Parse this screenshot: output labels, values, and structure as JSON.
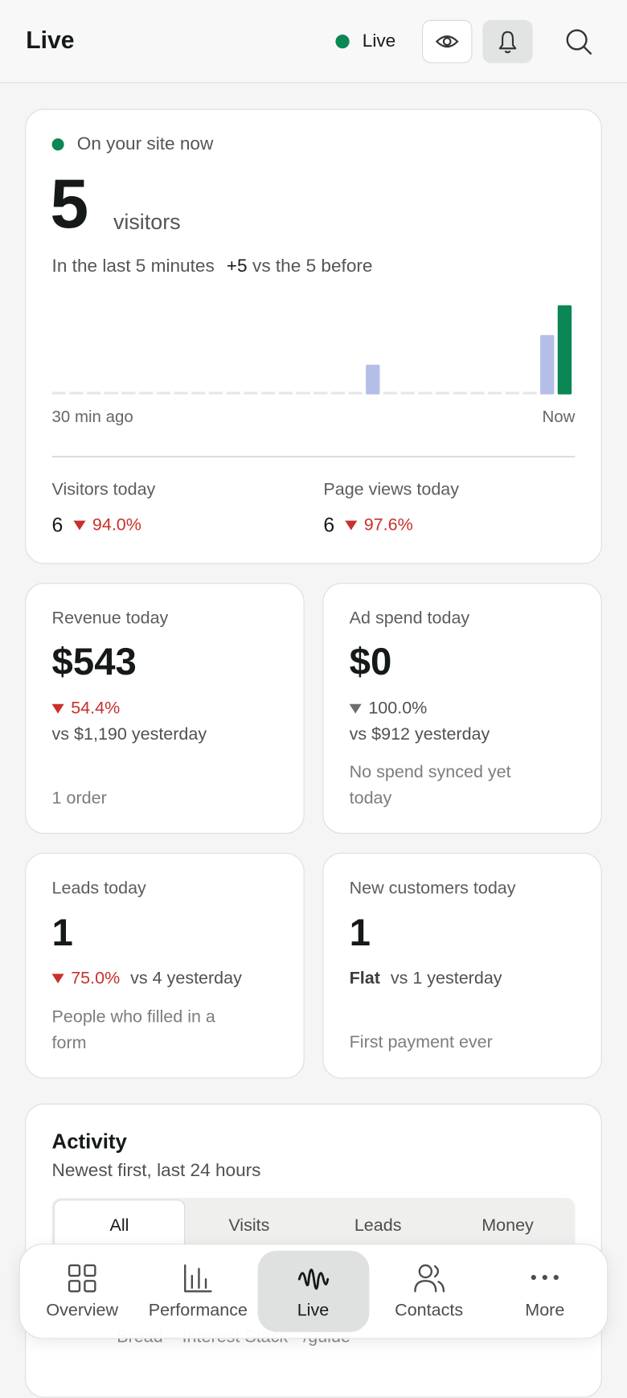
{
  "header": {
    "title": "Live",
    "status": "Live"
  },
  "live_card": {
    "label": "On your site now",
    "count": "5",
    "count_unit": "visitors",
    "subtitle": "In the last 5 minutes",
    "delta": "+5",
    "delta_text": "vs the 5 before",
    "chart": {
      "values": [
        0,
        0,
        0,
        0,
        0,
        0,
        0,
        0,
        0,
        0,
        0,
        0,
        0,
        0,
        0,
        0,
        0,
        0,
        1,
        0,
        0,
        0,
        0,
        0,
        0,
        0,
        0,
        0,
        2,
        3
      ],
      "color": "#b3bfe7",
      "current_color": "#0a8754",
      "start_label": "30 min ago",
      "end_label": "Now"
    },
    "stats": [
      {
        "label": "Visitors today",
        "value": "6",
        "change": "94.0%"
      },
      {
        "label": "Page views today",
        "value": "6",
        "change": "97.6%"
      }
    ]
  },
  "cards": [
    {
      "label": "Revenue today",
      "value": "$543",
      "change": "54.4%",
      "comparison": "vs $1,190 yesterday",
      "note": "1 order"
    },
    {
      "label": "Ad spend today",
      "value": "$0",
      "change": "100.0%",
      "comparison": "vs $912 yesterday",
      "note": "No spend synced yet today"
    },
    {
      "label": "Leads today",
      "value": "1",
      "change": "75.0%",
      "comparison": "vs 4 yesterday",
      "note": "People who filled in a form"
    },
    {
      "label": "New customers today",
      "value": "1",
      "change": "Flat",
      "comparison": "vs 1 yesterday",
      "note": "First payment ever"
    }
  ],
  "activity": {
    "title": "Activity",
    "subtitle": "Newest first, last 24 hours",
    "tabs": [
      "All",
      "Visits",
      "Leads",
      "Money"
    ],
    "items": [
      "Bread – Interest Stack · /guide"
    ]
  },
  "nav": [
    "Overview",
    "Performance",
    "Live",
    "Contacts",
    "More"
  ]
}
